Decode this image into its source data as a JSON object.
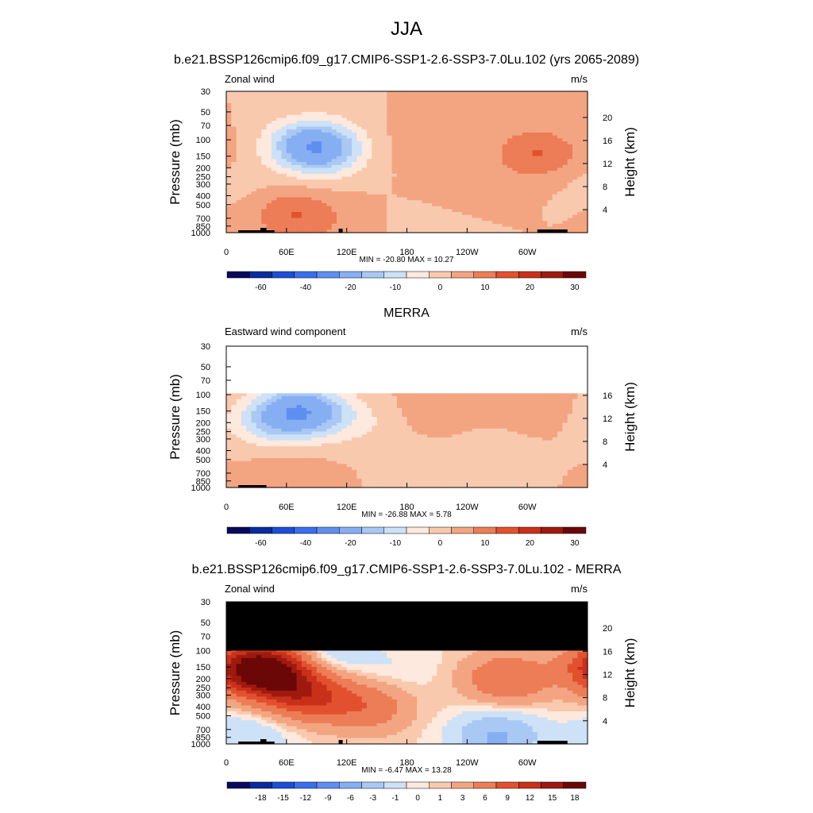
{
  "figure": {
    "title": "JJA"
  },
  "colors": {
    "colorbar_palette": [
      "#08085e",
      "#0a2a9e",
      "#1c4fd6",
      "#3a6fec",
      "#5e8ff0",
      "#86aef2",
      "#a9c8f4",
      "#cde1f7",
      "#fde9dd",
      "#f9c9ae",
      "#f3a582",
      "#ec7d57",
      "#e2512f",
      "#c9301a",
      "#9e1a0f",
      "#6b0707"
    ],
    "land": "#000000",
    "missing_mask": "#000000"
  },
  "chart_data": [
    {
      "type": "heatmap",
      "panel_title": "b.e21.BSSP126cmip6.f09_g17.CMIP6-SSP1-2.6-SSP3-7.0Lu.102 (yrs 2065-2089)",
      "left_label": "Zonal wind",
      "right_label": "m/s",
      "xlabel": "",
      "ylabel": "Pressure (mb)",
      "ylabel_right": "Height (km)",
      "x_ticks": [
        "0",
        "60E",
        "120E",
        "180",
        "120W",
        "60W"
      ],
      "x_range_deg": [
        0,
        360
      ],
      "y_ticks": [
        "30",
        "50",
        "70",
        "100",
        "150",
        "200",
        "250",
        "300",
        "400",
        "500",
        "700",
        "850",
        "1000"
      ],
      "y_range_mb": [
        30,
        1000
      ],
      "y_scale": "log",
      "height_ticks": [
        "4",
        "8",
        "12",
        "16",
        "20"
      ],
      "stats": "MIN = -20.80  MAX =  10.27",
      "colorbar_labels": [
        "-60",
        "-40",
        "-20",
        "-10",
        "0",
        "10",
        "20",
        "30"
      ],
      "features": [
        {
          "lon": 85,
          "p": 110,
          "value": -20.8
        },
        {
          "lon": 95,
          "p": 140,
          "value": -12
        },
        {
          "lon": 60,
          "p": 600,
          "value": 5
        },
        {
          "lon": 80,
          "p": 700,
          "value": 6
        },
        {
          "lon": 200,
          "p": 110,
          "value": 3
        },
        {
          "lon": 310,
          "p": 140,
          "value": 10.27
        },
        {
          "lon": 240,
          "p": 400,
          "value": 3
        },
        {
          "lon": 220,
          "p": 700,
          "value": -2
        },
        {
          "lon": 10,
          "p": 300,
          "value": -2
        }
      ]
    },
    {
      "type": "heatmap",
      "panel_title": "MERRA",
      "left_label": "Eastward wind component",
      "right_label": "m/s",
      "xlabel": "",
      "ylabel": "Pressure (mb)",
      "ylabel_right": "Height (km)",
      "x_ticks": [
        "0",
        "60E",
        "120E",
        "180",
        "120W",
        "60W"
      ],
      "x_range_deg": [
        0,
        360
      ],
      "y_ticks": [
        "30",
        "50",
        "70",
        "100",
        "150",
        "200",
        "250",
        "300",
        "400",
        "500",
        "700",
        "850",
        "1000"
      ],
      "y_range_mb": [
        30,
        1000
      ],
      "y_scale": "log",
      "height_ticks": [
        "4",
        "8",
        "12",
        "16"
      ],
      "stats": "MIN = -26.88  MAX =   5.78",
      "colorbar_labels": [
        "-60",
        "-40",
        "-20",
        "-10",
        "0",
        "10",
        "20",
        "30"
      ],
      "features": [
        {
          "lon": 75,
          "p": 150,
          "value": -26.88
        },
        {
          "lon": 40,
          "p": 200,
          "value": -10
        },
        {
          "lon": 130,
          "p": 200,
          "value": -5
        },
        {
          "lon": 210,
          "p": 140,
          "value": 3
        },
        {
          "lon": 310,
          "p": 140,
          "value": 3
        },
        {
          "lon": 270,
          "p": 400,
          "value": -2
        },
        {
          "lon": 60,
          "p": 700,
          "value": 3
        },
        {
          "lon": 200,
          "p": 600,
          "value": -2
        }
      ]
    },
    {
      "type": "heatmap",
      "panel_title": "b.e21.BSSP126cmip6.f09_g17.CMIP6-SSP1-2.6-SSP3-7.0Lu.102 - MERRA",
      "left_label": "Zonal wind",
      "right_label": "m/s",
      "xlabel": "",
      "ylabel": "Pressure (mb)",
      "ylabel_right": "Height (km)",
      "x_ticks": [
        "0",
        "60E",
        "120E",
        "180",
        "120W",
        "60W"
      ],
      "x_range_deg": [
        0,
        360
      ],
      "y_ticks": [
        "30",
        "50",
        "70",
        "100",
        "150",
        "200",
        "250",
        "300",
        "400",
        "500",
        "700",
        "850",
        "1000"
      ],
      "y_range_mb": [
        30,
        1000
      ],
      "y_scale": "log",
      "height_ticks": [
        "4",
        "8",
        "12",
        "16",
        "20"
      ],
      "stats": "MIN =  -6.47  MAX =  13.28",
      "colorbar_labels": [
        "-18",
        "-15",
        "-12",
        "-9",
        "-6",
        "-3",
        "-1",
        "0",
        "1",
        "3",
        "6",
        "9",
        "12",
        "15",
        "18"
      ],
      "missing_above_mb": 100,
      "features": [
        {
          "lon": 45,
          "p": 170,
          "value": 13.28
        },
        {
          "lon": 80,
          "p": 300,
          "value": 9
        },
        {
          "lon": 20,
          "p": 150,
          "value": 9
        },
        {
          "lon": 140,
          "p": 400,
          "value": 5
        },
        {
          "lon": 280,
          "p": 200,
          "value": 6
        },
        {
          "lon": 170,
          "p": 160,
          "value": -1
        },
        {
          "lon": 100,
          "p": 110,
          "value": -3
        },
        {
          "lon": 270,
          "p": 850,
          "value": -6.47
        },
        {
          "lon": 20,
          "p": 850,
          "value": -3
        }
      ]
    }
  ]
}
